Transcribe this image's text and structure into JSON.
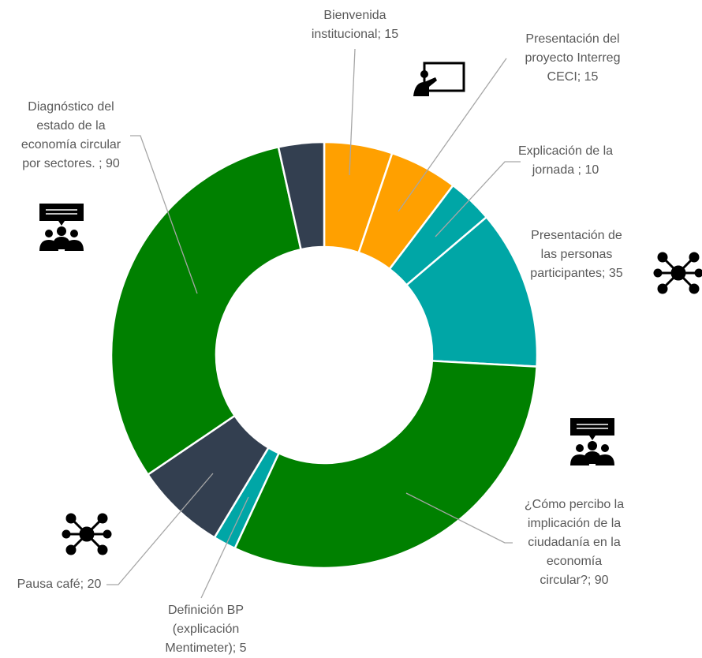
{
  "chart_data": {
    "type": "donut",
    "labels": [
      "Bienvenida\ninstitucional; 15",
      "Presentación del\nproyecto Interreg\nCECI; 15",
      "Explicación de la\njornada ; 10",
      "Presentación de\nlas personas\nparticipantes; 35",
      "¿Cómo percibo la\nimplicación de la\nciudadanía en la\neconomía\ncircular?; 90",
      "Definición BP\n(explicación\nMentimeter); 5",
      "Pausa café; 20",
      "Diagnóstico del\nestado de la\neconomía circular\npor sectores. ; 90",
      null
    ],
    "values": [
      15,
      15,
      10,
      35,
      90,
      5,
      20,
      90,
      10
    ],
    "colors": [
      "#ffa000",
      "#ffa000",
      "#00a6a6",
      "#00a6a6",
      "#008000",
      "#00a6a6",
      "#333f50",
      "#008000",
      "#333f50"
    ]
  }
}
